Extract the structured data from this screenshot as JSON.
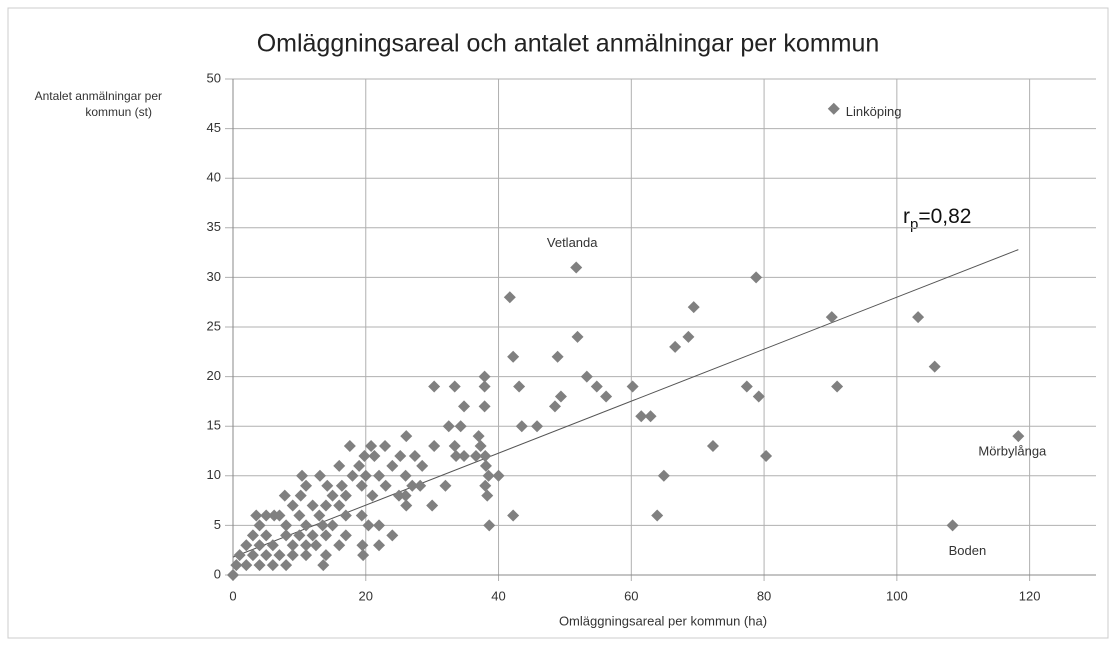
{
  "chart_data": {
    "type": "scatter",
    "title": "Omläggningsareal och antalet anmälningar per kommun",
    "y_label": [
      "Antalet anmälningar per",
      "kommun (st)"
    ],
    "x_label": "Omläggningsareal per kommun (ha)",
    "annotation": {
      "main": "r",
      "sub": "p",
      "rest": "=0,82"
    },
    "color": "#808080",
    "xlim": [
      0,
      130
    ],
    "xticks": [
      0,
      20,
      40,
      60,
      80,
      100,
      120
    ],
    "ylim": [
      0,
      50
    ],
    "yticks": [
      0,
      5,
      10,
      15,
      20,
      25,
      30,
      35,
      40,
      45,
      50
    ],
    "grid": true,
    "trendline": {
      "x": [
        0,
        118.3
      ],
      "y": [
        1.8,
        32.8
      ]
    },
    "x": [
      90.5,
      51.7,
      118.3,
      108.4,
      78.8,
      41.7,
      69.4,
      90.2,
      103.2,
      51.9,
      68.6,
      66.6,
      42.2,
      48.9,
      105.7,
      37.9,
      53.3,
      30.3,
      33.4,
      37.9,
      43.1,
      54.8,
      60.2,
      77.4,
      91,
      49.4,
      56.2,
      79.2,
      34.8,
      37.9,
      48.5,
      61.5,
      62.9,
      32.5,
      34.3,
      43.5,
      45.8,
      26.1,
      37,
      17.6,
      20.8,
      22.9,
      30.3,
      33.4,
      37.3,
      72.3,
      80.3,
      19.8,
      21.3,
      25.2,
      27.4,
      33.6,
      34.8,
      36.6,
      38,
      16,
      19,
      24,
      28.5,
      38.1,
      10.4,
      13.1,
      18,
      20,
      22,
      26,
      38.5,
      40,
      64.9,
      11,
      14.2,
      16.4,
      19.4,
      23,
      27,
      28.2,
      32,
      38,
      7.8,
      10.2,
      15,
      17,
      21,
      25,
      26,
      38.3,
      9,
      12,
      14,
      16,
      26.1,
      30,
      7,
      3.5,
      5,
      6.2,
      10,
      13,
      17,
      19.4,
      42.2,
      63.9,
      38.6,
      4,
      8,
      11,
      13.5,
      15,
      20.4,
      22,
      3,
      5,
      8,
      10,
      12,
      14,
      17,
      24,
      2,
      4,
      6,
      9,
      11,
      12.5,
      16,
      19.5,
      22,
      1,
      3,
      5,
      7,
      9,
      11,
      14,
      19.6,
      0.5,
      2,
      4,
      6,
      8,
      13.6,
      0
    ],
    "values": [
      47,
      31,
      14,
      5,
      30,
      28,
      27,
      26,
      26,
      24,
      24,
      23,
      22,
      22,
      21,
      20,
      20,
      19,
      19,
      19,
      19,
      19,
      19,
      19,
      19,
      18,
      18,
      18,
      17,
      17,
      17,
      16,
      16,
      15,
      15,
      15,
      15,
      14,
      14,
      13,
      13,
      13,
      13,
      13,
      13,
      13,
      12,
      12,
      12,
      12,
      12,
      12,
      12,
      12,
      12,
      11,
      11,
      11,
      11,
      11,
      10,
      10,
      10,
      10,
      10,
      10,
      10,
      10,
      10,
      9,
      9,
      9,
      9,
      9,
      9,
      9,
      9,
      9,
      8,
      8,
      8,
      8,
      8,
      8,
      8,
      8,
      7,
      7,
      7,
      7,
      7,
      7,
      6,
      6,
      6,
      6,
      6,
      6,
      6,
      6,
      6,
      6,
      5,
      5,
      5,
      5,
      5,
      5,
      5,
      5,
      4,
      4,
      4,
      4,
      4,
      4,
      4,
      4,
      3,
      3,
      3,
      3,
      3,
      3,
      3,
      3,
      3,
      2,
      2,
      2,
      2,
      2,
      2,
      2,
      2,
      1,
      1,
      1,
      1,
      1,
      1,
      0
    ],
    "point_labels": [
      "Linköping",
      "Vetlanda",
      "Mörbylånga",
      "Boden",
      null,
      null,
      null,
      null,
      null,
      null,
      null,
      null,
      null,
      null,
      null,
      null,
      null,
      null,
      null,
      null,
      null,
      null,
      null,
      null,
      null,
      null,
      null,
      null,
      null,
      null,
      null,
      null,
      null,
      null,
      null,
      null,
      null,
      null,
      null,
      null,
      null,
      null,
      null,
      null,
      null,
      null,
      null,
      null,
      null,
      null,
      null,
      null,
      null,
      null,
      null,
      null,
      null,
      null,
      null,
      null,
      null,
      null,
      null,
      null,
      null,
      null,
      null,
      null,
      null,
      null,
      null,
      null,
      null,
      null,
      null,
      null,
      null,
      null,
      null,
      null,
      null,
      null,
      null,
      null,
      null,
      null,
      null,
      null,
      null,
      null,
      null,
      null,
      null,
      null,
      null,
      null,
      null,
      null,
      null,
      null,
      null,
      null,
      null,
      null,
      null,
      null,
      null,
      null,
      null,
      null,
      null,
      null,
      null,
      null,
      null,
      null,
      null,
      null,
      null,
      null,
      null,
      null,
      null,
      null,
      null,
      null,
      null,
      null,
      null,
      null,
      null,
      null,
      null,
      null,
      null,
      null,
      null,
      null,
      null,
      null,
      null,
      null
    ]
  }
}
